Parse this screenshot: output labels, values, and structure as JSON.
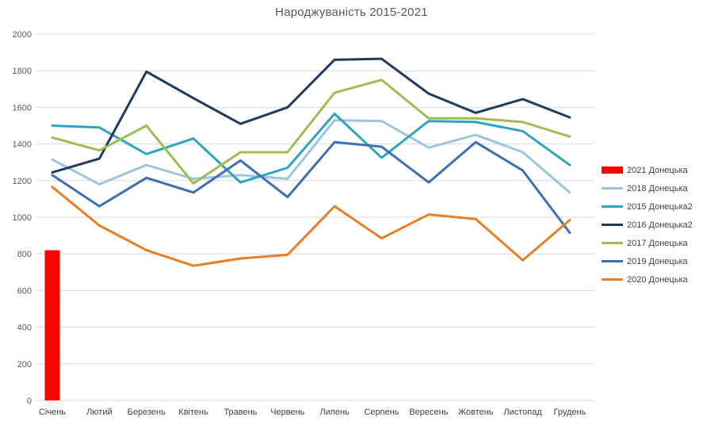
{
  "chart_data": {
    "type": "line",
    "title": "Народжуваність 2015-2021",
    "categories": [
      "Січень",
      "Лютий",
      "Березень",
      "Квітень",
      "Травень",
      "Червень",
      "Липень",
      "Серпень",
      "Вересень",
      "Жовтень",
      "Листопад",
      "Грудень"
    ],
    "series": [
      {
        "name": "2021 Донецька",
        "type": "bar",
        "color": "#FF0000",
        "values": [
          820,
          null,
          null,
          null,
          null,
          null,
          null,
          null,
          null,
          null,
          null,
          null
        ]
      },
      {
        "name": "2018 Донецька",
        "type": "line",
        "color": "#9DC6DC",
        "values": [
          1315,
          1180,
          1285,
          1210,
          1230,
          1210,
          1530,
          1525,
          1380,
          1450,
          1355,
          1135
        ]
      },
      {
        "name": "2015 Донецька2",
        "type": "line",
        "color": "#2FA4C0",
        "values": [
          1500,
          1490,
          1345,
          1430,
          1190,
          1270,
          1565,
          1325,
          1525,
          1520,
          1470,
          1285
        ]
      },
      {
        "name": "2016 Донецька2",
        "type": "line",
        "color": "#203B60",
        "values": [
          1245,
          1320,
          1795,
          1650,
          1510,
          1600,
          1860,
          1865,
          1675,
          1570,
          1645,
          1545
        ]
      },
      {
        "name": "2017 Донецька",
        "type": "line",
        "color": "#A0BC53",
        "values": [
          1435,
          1365,
          1500,
          1185,
          1355,
          1355,
          1680,
          1750,
          1540,
          1540,
          1520,
          1440
        ]
      },
      {
        "name": "2019 Донецька",
        "type": "line",
        "color": "#3D6FB2",
        "values": [
          1230,
          1060,
          1215,
          1135,
          1310,
          1110,
          1410,
          1385,
          1190,
          1410,
          1255,
          915
        ]
      },
      {
        "name": "2020 Донецька",
        "type": "line",
        "color": "#E87E25",
        "values": [
          1165,
          955,
          820,
          735,
          775,
          795,
          1060,
          885,
          1015,
          990,
          765,
          985
        ]
      }
    ],
    "ylim": [
      0,
      2000
    ],
    "ytick_step": 200,
    "grid": true,
    "legend_position": "right",
    "gridline_color": "#D9D9D9",
    "y_tick_color": "#595959",
    "x_tick_color": "#404040",
    "title_color": "#595959"
  }
}
